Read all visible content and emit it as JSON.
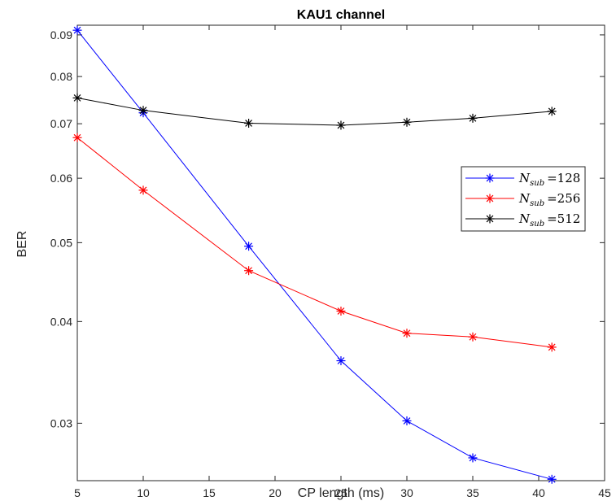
{
  "chart_data": {
    "type": "line",
    "title": "KAU1 channel",
    "xlabel": "CP length (ms)",
    "ylabel": "BER",
    "xlim": [
      5,
      45
    ],
    "ylim": [
      0.0255,
      0.0925
    ],
    "yscale": "log",
    "grid": false,
    "legend_position": "right",
    "x_ticks": [
      5,
      10,
      15,
      20,
      25,
      30,
      35,
      40,
      45
    ],
    "x_tick_labels": [
      "5",
      "10",
      "15",
      "20",
      "25",
      "30",
      "35",
      "40",
      "45"
    ],
    "y_ticks": [
      0.03,
      0.04,
      0.05,
      0.06,
      0.07,
      0.08,
      0.09
    ],
    "y_tick_labels": [
      "0.03",
      "0.04",
      "0.05",
      "0.06",
      "0.07",
      "0.08",
      "0.09"
    ],
    "x": [
      5,
      10,
      18,
      25,
      30,
      35,
      41
    ],
    "series": [
      {
        "label_base": "N",
        "label_sub": "sub",
        "label_value": "=128",
        "color": "#0000ff",
        "values": [
          0.0912,
          0.0722,
          0.0495,
          0.0358,
          0.0302,
          0.0272,
          0.0256
        ]
      },
      {
        "label_base": "N",
        "label_sub": "sub",
        "label_value": "=256",
        "color": "#ff0000",
        "values": [
          0.0673,
          0.058,
          0.0462,
          0.0412,
          0.0387,
          0.0383,
          0.0372
        ]
      },
      {
        "label_base": "N",
        "label_sub": "sub",
        "label_value": "=512",
        "color": "#000000",
        "values": [
          0.0753,
          0.0727,
          0.0701,
          0.0697,
          0.0703,
          0.0711,
          0.0725
        ]
      }
    ]
  }
}
